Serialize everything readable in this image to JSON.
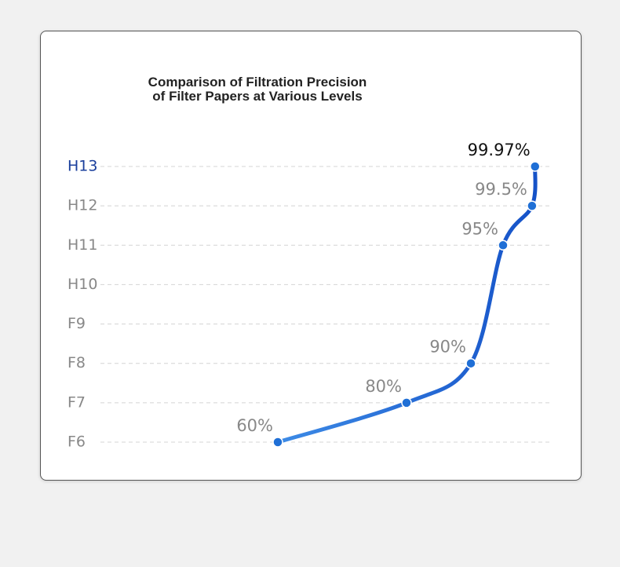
{
  "chart_data": {
    "type": "line",
    "title": "Comparison of Filtration Precision\nof Filter Papers at Various Levels",
    "yticks": [
      "F6",
      "F7",
      "F8",
      "F9",
      "H10",
      "H11",
      "H12",
      "H13"
    ],
    "categories": [
      "F6",
      "F7",
      "F8",
      "H11",
      "H12",
      "H13"
    ],
    "values": [
      60,
      80,
      90,
      95,
      99.5,
      99.97
    ],
    "value_labels": [
      "60%",
      "80%",
      "90%",
      "95%",
      "99.5%",
      "99.97%"
    ],
    "color": "#1f6fd6",
    "grid": true
  }
}
